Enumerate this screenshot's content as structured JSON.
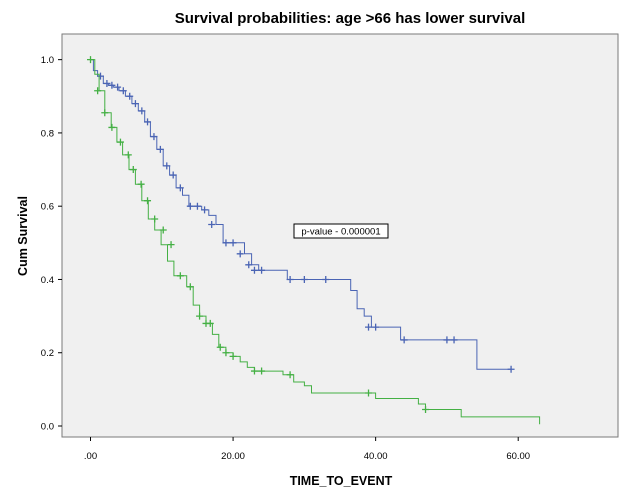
{
  "chart_data": {
    "type": "line",
    "title": "Survival probabilities: age >66 has lower survival",
    "xlabel": "TIME_TO_EVENT",
    "ylabel": "Cum Survival",
    "xlim": [
      -4,
      74
    ],
    "ylim": [
      -0.03,
      1.07
    ],
    "xticks": [
      0,
      20,
      40,
      60
    ],
    "xtick_labels": [
      ".00",
      "20.00",
      "40.00",
      "60.00"
    ],
    "yticks": [
      0,
      0.2,
      0.4,
      0.6,
      0.8,
      1.0
    ],
    "ytick_labels": [
      "0.0",
      "0.2",
      "0.4",
      "0.6",
      "0.8",
      "1.0"
    ],
    "plot_background": "#f0f0f0",
    "grid": false,
    "annotation": "p-value - 0.000001",
    "series": [
      {
        "style": "step",
        "color": "#4a64b4",
        "x": [
          0,
          0.4,
          1,
          1.8,
          2.5,
          3.2,
          4,
          4.9,
          5.8,
          6.7,
          7.6,
          8.4,
          9.3,
          10.2,
          11.1,
          12,
          12.9,
          13.8,
          14.7,
          15.6,
          16.6,
          17.6,
          18.6,
          19.6,
          20.6,
          21.6,
          22.6,
          23.6,
          25.6,
          27.6,
          29.6,
          31.6,
          33.6,
          35.6,
          36.5,
          37.4,
          38.4,
          39.4,
          42,
          43.5,
          46,
          49,
          52,
          54.2,
          56,
          59
        ],
        "y": [
          1.0,
          0.97,
          0.955,
          0.935,
          0.93,
          0.925,
          0.915,
          0.9,
          0.88,
          0.86,
          0.83,
          0.79,
          0.755,
          0.71,
          0.685,
          0.65,
          0.63,
          0.6,
          0.6,
          0.59,
          0.575,
          0.55,
          0.5,
          0.5,
          0.5,
          0.47,
          0.44,
          0.425,
          0.425,
          0.4,
          0.4,
          0.4,
          0.4,
          0.4,
          0.37,
          0.32,
          0.3,
          0.27,
          0.27,
          0.235,
          0.235,
          0.235,
          0.235,
          0.155,
          0.155,
          0.155
        ],
        "censor_x": [
          1.4,
          2.3,
          3.0,
          3.8,
          4.6,
          5.5,
          6.3,
          7.2,
          8.0,
          8.9,
          9.8,
          10.7,
          11.6,
          12.6,
          14.0,
          15.0,
          16.0,
          17.0,
          19.0,
          20.0,
          21.0,
          22.2,
          23.0,
          24.0,
          28.0,
          30.0,
          33.0,
          39.0,
          40.0,
          44.0,
          50.0,
          51.0,
          59.0
        ],
        "censor_y": [
          0.955,
          0.935,
          0.93,
          0.925,
          0.915,
          0.9,
          0.88,
          0.86,
          0.83,
          0.79,
          0.755,
          0.71,
          0.685,
          0.65,
          0.6,
          0.6,
          0.59,
          0.55,
          0.5,
          0.5,
          0.47,
          0.44,
          0.425,
          0.425,
          0.4,
          0.4,
          0.4,
          0.27,
          0.27,
          0.235,
          0.235,
          0.235,
          0.155
        ]
      },
      {
        "style": "step",
        "color": "#44b044",
        "x": [
          0,
          0.6,
          1.2,
          2.0,
          2.9,
          3.7,
          4.5,
          5.4,
          6.3,
          7.2,
          8.1,
          9.0,
          9.9,
          10.8,
          11.7,
          12.6,
          13.5,
          14.4,
          15.3,
          16.2,
          17.1,
          18.0,
          19.0,
          20.0,
          21.0,
          22.0,
          23.0,
          25.0,
          27.0,
          28.5,
          30.0,
          31.0,
          35.0,
          38.0,
          40.0,
          43.0,
          46.0,
          47.0,
          50.0,
          52.0,
          55.0,
          58.0,
          61.0,
          63.0
        ],
        "y": [
          1.0,
          0.96,
          0.915,
          0.855,
          0.815,
          0.775,
          0.74,
          0.7,
          0.66,
          0.615,
          0.565,
          0.535,
          0.495,
          0.45,
          0.41,
          0.41,
          0.38,
          0.33,
          0.3,
          0.28,
          0.25,
          0.215,
          0.2,
          0.19,
          0.175,
          0.16,
          0.15,
          0.15,
          0.14,
          0.12,
          0.11,
          0.09,
          0.09,
          0.09,
          0.075,
          0.075,
          0.06,
          0.045,
          0.045,
          0.025,
          0.025,
          0.025,
          0.025,
          0.005
        ],
        "censor_x": [
          0,
          1.0,
          2.0,
          3.0,
          4.2,
          5.3,
          6.0,
          7.1,
          8.0,
          9.0,
          10.2,
          11.3,
          12.6,
          14.0,
          15.3,
          16.2,
          16.8,
          18.2,
          19.0,
          20.0,
          23.0,
          24.0,
          28.0,
          39.0,
          47.0
        ],
        "censor_y": [
          1.0,
          0.915,
          0.855,
          0.815,
          0.775,
          0.74,
          0.7,
          0.66,
          0.615,
          0.565,
          0.535,
          0.495,
          0.41,
          0.38,
          0.3,
          0.28,
          0.28,
          0.215,
          0.2,
          0.19,
          0.15,
          0.15,
          0.14,
          0.09,
          0.045
        ]
      }
    ]
  }
}
